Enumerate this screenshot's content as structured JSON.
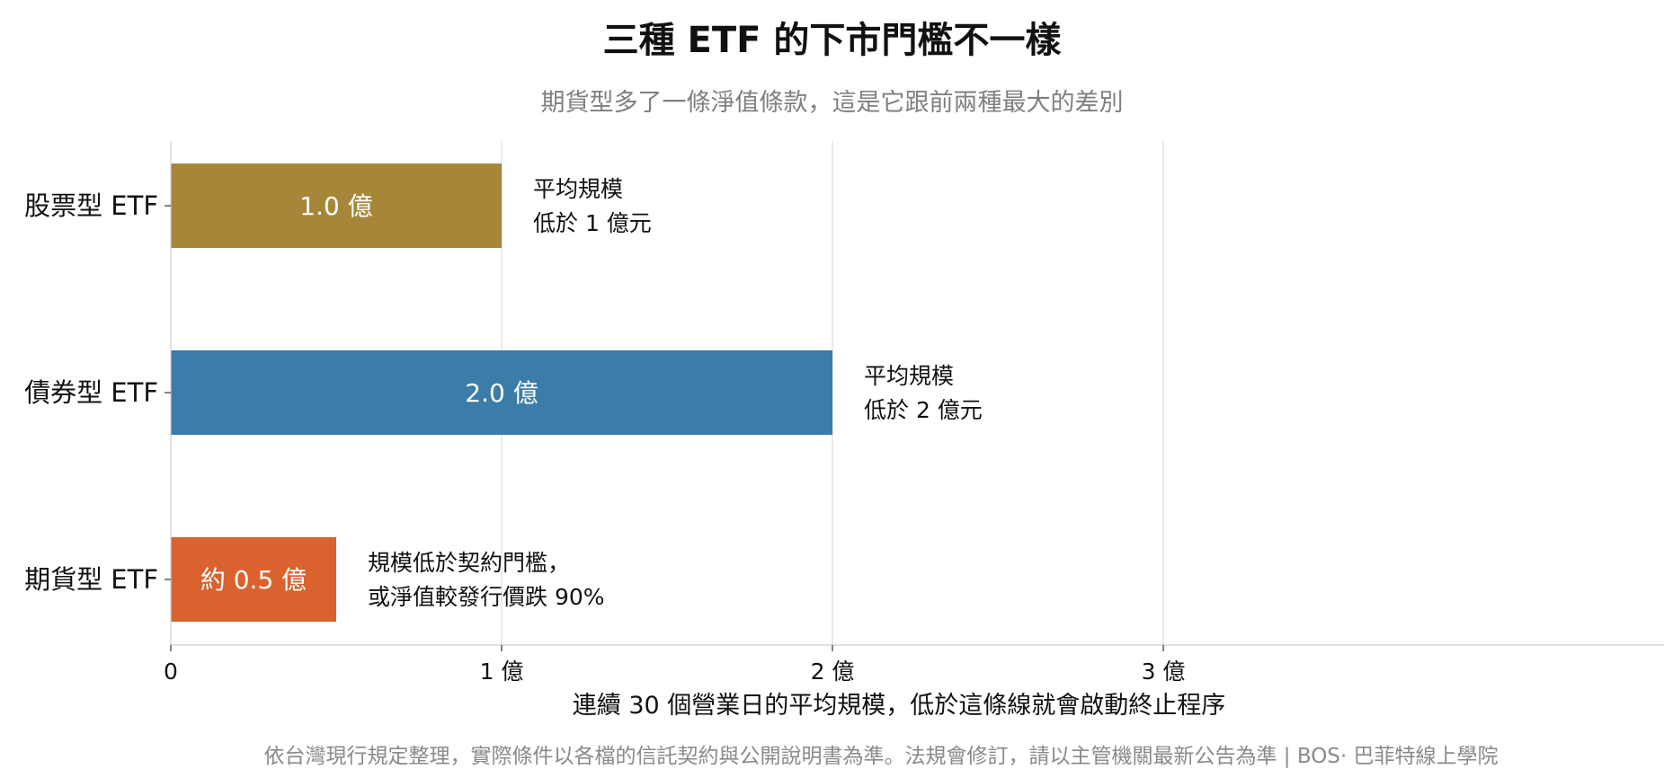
{
  "chart_data": {
    "type": "bar",
    "orientation": "horizontal",
    "title": "三種 ETF 的下市門檻不一樣",
    "subtitle": "期貨型多了一條淨值條款，這是它跟前兩種最大的差別",
    "categories": [
      "股票型 ETF",
      "債券型 ETF",
      "期貨型 ETF"
    ],
    "values": [
      1.0,
      2.0,
      0.5
    ],
    "bar_labels": [
      "1.0 億",
      "2.0 億",
      "約 0.5 億"
    ],
    "colors": [
      "#a6873a",
      "#3b7ca8",
      "#d9622f"
    ],
    "annotations": [
      [
        "平均規模",
        "低於 1 億元"
      ],
      [
        "平均規模",
        "低於 2 億元"
      ],
      [
        "規模低於契約門檻，",
        "或淨值較發行價跌 90%"
      ]
    ],
    "xlabel": "連續 30 個營業日的平均規模，低於這條線就會啟動終止程序",
    "xticks": [
      0,
      1,
      2,
      3
    ],
    "xtick_labels": [
      "0",
      "1 億",
      "2 億",
      "3 億"
    ],
    "xlim": [
      0,
      4.5
    ],
    "grid": "vertical"
  },
  "footnote": "依台灣現行規定整理，實際條件以各檔的信託契約與公開說明書為準。法規會修訂，請以主管機關最新公告為準 | BOS· 巴菲特線上學院"
}
